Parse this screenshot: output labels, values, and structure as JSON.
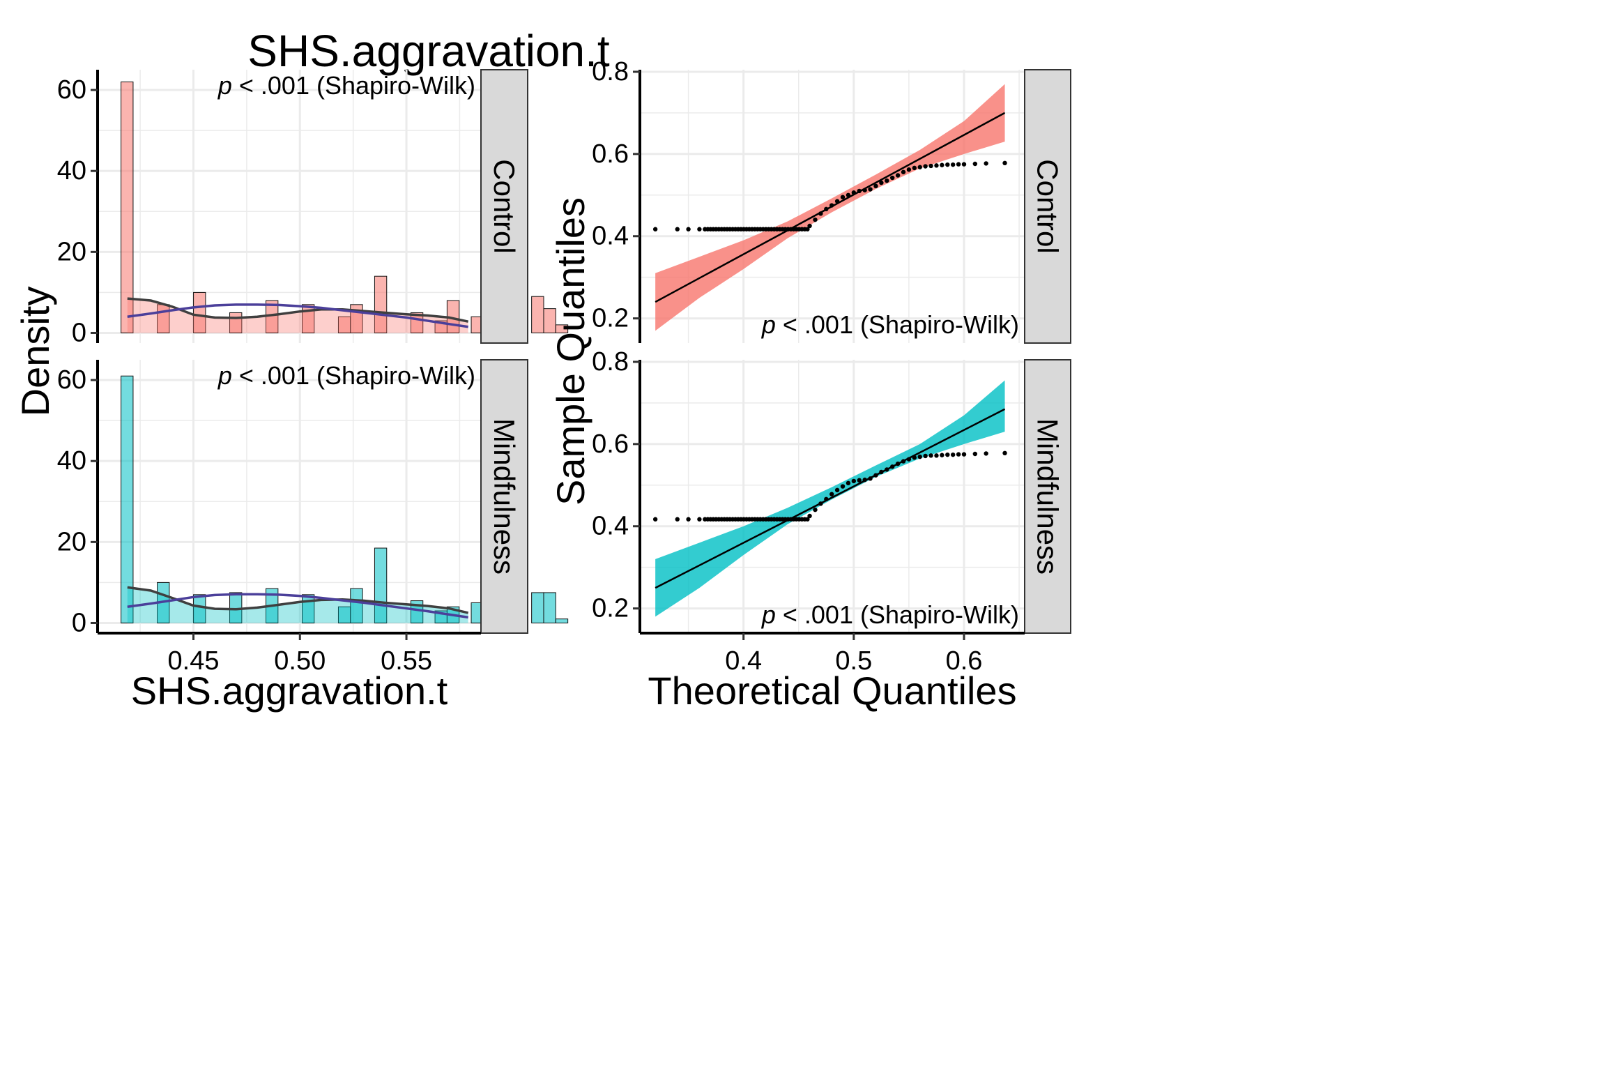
{
  "title": "SHS.aggravation.t",
  "colors": {
    "control": "#F8766D",
    "mindfulness": "#00BFC4",
    "density_fit": "#3F3F3F",
    "normal_fit": "#4B3F9A",
    "grid": "#EBEBEB",
    "strip": "#D9D9D9"
  },
  "chart_data": [
    {
      "type": "bar",
      "subtype": "histogram-density",
      "xlabel": "SHS.aggravation.t",
      "ylabel": "Density",
      "xlim": [
        0.405,
        0.585
      ],
      "ylim": [
        -2.5,
        65
      ],
      "xticks": [
        0.45,
        0.5,
        0.55
      ],
      "xtick_labels": [
        "0.45",
        "0.50",
        "0.55"
      ],
      "yticks": [
        0,
        20,
        40,
        60
      ],
      "ytick_labels": [
        "0",
        "20",
        "40",
        "60"
      ],
      "bin_start": 0.416,
      "bin_width": 0.00567,
      "panels": [
        {
          "facet": "Control",
          "fill": "#F8766D",
          "annotation": {
            "italic": "p",
            "text": " < .001 (Shapiro-Wilk)"
          },
          "values": [
            62,
            0,
            0,
            7,
            0,
            0,
            10,
            0,
            0,
            5,
            0,
            0,
            8,
            0,
            0,
            7,
            0,
            0,
            4,
            7,
            0,
            14,
            0,
            0,
            5,
            0,
            3,
            8,
            0,
            4,
            0,
            5,
            0,
            0,
            9,
            6,
            2
          ],
          "density_curve": {
            "x": [
              0.419,
              0.43,
              0.44,
              0.45,
              0.46,
              0.47,
              0.48,
              0.49,
              0.5,
              0.51,
              0.52,
              0.53,
              0.54,
              0.55,
              0.56,
              0.57,
              0.579
            ],
            "y": [
              8.5,
              8.0,
              6.5,
              4.5,
              3.8,
              3.7,
              4.0,
              4.6,
              5.3,
              5.8,
              5.8,
              5.4,
              5.0,
              4.6,
              4.3,
              3.8,
              2.8
            ]
          },
          "normal_curve": {
            "x": [
              0.419,
              0.43,
              0.44,
              0.45,
              0.46,
              0.47,
              0.48,
              0.49,
              0.5,
              0.51,
              0.52,
              0.53,
              0.54,
              0.55,
              0.56,
              0.57,
              0.579
            ],
            "y": [
              4.0,
              4.8,
              5.6,
              6.3,
              6.8,
              7.0,
              7.0,
              6.9,
              6.6,
              6.2,
              5.6,
              5.0,
              4.4,
              3.8,
              3.0,
              2.2,
              1.5
            ]
          }
        },
        {
          "facet": "Mindfulness",
          "fill": "#00BFC4",
          "annotation": {
            "italic": "p",
            "text": " < .001 (Shapiro-Wilk)"
          },
          "values": [
            61,
            0,
            0,
            10,
            0,
            0,
            7,
            0,
            0,
            7.5,
            0,
            0,
            8.5,
            0,
            0,
            7,
            0,
            0,
            4,
            8.5,
            0,
            18.5,
            0,
            0,
            5.5,
            0,
            3,
            4,
            0,
            5,
            0,
            4,
            0,
            0,
            7.5,
            7.5,
            1
          ],
          "density_curve": {
            "x": [
              0.419,
              0.43,
              0.44,
              0.45,
              0.46,
              0.47,
              0.48,
              0.49,
              0.5,
              0.51,
              0.52,
              0.53,
              0.54,
              0.55,
              0.56,
              0.57,
              0.579
            ],
            "y": [
              8.8,
              8.0,
              6.2,
              4.3,
              3.5,
              3.4,
              3.8,
              4.5,
              5.2,
              5.7,
              5.8,
              5.5,
              5.0,
              4.6,
              4.2,
              3.6,
              2.5
            ]
          },
          "normal_curve": {
            "x": [
              0.419,
              0.43,
              0.44,
              0.45,
              0.46,
              0.47,
              0.48,
              0.49,
              0.5,
              0.51,
              0.52,
              0.53,
              0.54,
              0.55,
              0.56,
              0.57,
              0.579
            ],
            "y": [
              4.0,
              4.8,
              5.6,
              6.4,
              6.9,
              7.1,
              7.1,
              7.0,
              6.7,
              6.2,
              5.6,
              5.0,
              4.3,
              3.6,
              2.9,
              2.1,
              1.4
            ]
          }
        }
      ]
    },
    {
      "type": "scatter",
      "subtype": "qq-plot",
      "xlabel": "Theoretical Quantiles",
      "ylabel": "Sample Quantiles",
      "xlim": [
        0.306,
        0.655
      ],
      "ylim": [
        0.14,
        0.805
      ],
      "xticks": [
        0.4,
        0.5,
        0.6
      ],
      "xtick_labels": [
        "0.4",
        "0.5",
        "0.6"
      ],
      "yticks": [
        0.2,
        0.4,
        0.6,
        0.8
      ],
      "ytick_labels": [
        "0.2",
        "0.4",
        "0.6",
        "0.8"
      ],
      "panels": [
        {
          "facet": "Control",
          "fill": "#F8766D",
          "annotation": {
            "italic": "p",
            "text": " < .001 (Shapiro-Wilk)"
          },
          "reference_line": {
            "x": [
              0.32,
              0.637
            ],
            "y": [
              0.24,
              0.7
            ]
          },
          "band": {
            "x": [
              0.32,
              0.36,
              0.4,
              0.44,
              0.48,
              0.52,
              0.56,
              0.6,
              0.637
            ],
            "upper": [
              0.31,
              0.35,
              0.39,
              0.436,
              0.492,
              0.55,
              0.61,
              0.68,
              0.77
            ],
            "lower": [
              0.17,
              0.25,
              0.32,
              0.395,
              0.458,
              0.515,
              0.565,
              0.6,
              0.63
            ]
          },
          "points": {
            "x_lower_tail": [
              0.32,
              0.34,
              0.35,
              0.36
            ],
            "flat_low": {
              "x_range": [
                0.365,
                0.458
              ],
              "y": 0.417,
              "n": 38
            },
            "rise": {
              "x": [
                0.46,
                0.465,
                0.47,
                0.475,
                0.48,
                0.485,
                0.49,
                0.495,
                0.5,
                0.505,
                0.51,
                0.515,
                0.52,
                0.525,
                0.53,
                0.535,
                0.54,
                0.545,
                0.55,
                0.555,
                0.56,
                0.565,
                0.57
              ],
              "y": [
                0.425,
                0.44,
                0.455,
                0.466,
                0.475,
                0.485,
                0.495,
                0.5,
                0.506,
                0.51,
                0.512,
                0.514,
                0.522,
                0.53,
                0.535,
                0.542,
                0.548,
                0.556,
                0.562,
                0.566,
                0.568,
                0.57,
                0.571
              ]
            },
            "flat_high": {
              "x": [
                0.575,
                0.58,
                0.585,
                0.59,
                0.595,
                0.6,
                0.61,
                0.62,
                0.637
              ],
              "y": [
                0.572,
                0.573,
                0.574,
                0.574,
                0.575,
                0.575,
                0.576,
                0.577,
                0.578
              ]
            }
          }
        },
        {
          "facet": "Mindfulness",
          "fill": "#00BFC4",
          "annotation": {
            "italic": "p",
            "text": " < .001 (Shapiro-Wilk)"
          },
          "reference_line": {
            "x": [
              0.32,
              0.637
            ],
            "y": [
              0.25,
              0.685
            ]
          },
          "band": {
            "x": [
              0.32,
              0.36,
              0.4,
              0.44,
              0.48,
              0.52,
              0.56,
              0.6,
              0.637
            ],
            "upper": [
              0.32,
              0.36,
              0.4,
              0.445,
              0.495,
              0.548,
              0.6,
              0.67,
              0.755
            ],
            "lower": [
              0.18,
              0.25,
              0.33,
              0.405,
              0.465,
              0.52,
              0.565,
              0.6,
              0.63
            ]
          },
          "points": {
            "x_lower_tail": [
              0.32,
              0.34,
              0.35,
              0.36
            ],
            "flat_low": {
              "x_range": [
                0.365,
                0.458
              ],
              "y": 0.417,
              "n": 38
            },
            "rise": {
              "x": [
                0.46,
                0.465,
                0.47,
                0.475,
                0.48,
                0.485,
                0.49,
                0.495,
                0.5,
                0.505,
                0.51,
                0.515,
                0.52,
                0.525,
                0.53,
                0.535,
                0.54,
                0.545,
                0.55,
                0.555,
                0.56,
                0.565,
                0.57
              ],
              "y": [
                0.425,
                0.44,
                0.455,
                0.466,
                0.478,
                0.488,
                0.497,
                0.505,
                0.51,
                0.512,
                0.513,
                0.516,
                0.524,
                0.532,
                0.538,
                0.545,
                0.552,
                0.558,
                0.563,
                0.567,
                0.569,
                0.571,
                0.572
              ]
            },
            "flat_high": {
              "x": [
                0.575,
                0.58,
                0.585,
                0.59,
                0.595,
                0.6,
                0.61,
                0.62,
                0.637
              ],
              "y": [
                0.572,
                0.573,
                0.574,
                0.574,
                0.575,
                0.575,
                0.576,
                0.577,
                0.578
              ]
            }
          }
        }
      ]
    }
  ]
}
